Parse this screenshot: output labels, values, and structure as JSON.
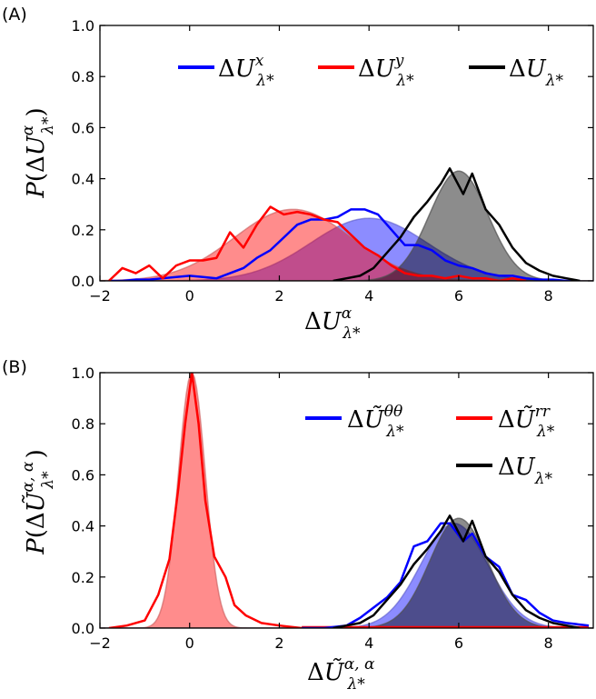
{
  "chart_data": [
    {
      "panel_label": "(A)",
      "type": "line",
      "xlim": [
        -2,
        9
      ],
      "ylim": [
        0,
        1.0
      ],
      "x_ticks": [
        -2,
        0,
        2,
        4,
        6,
        8
      ],
      "y_ticks": [
        0.0,
        0.2,
        0.4,
        0.6,
        0.8,
        1.0
      ],
      "x_tick_labels": [
        "−2",
        "0",
        "2",
        "4",
        "6",
        "8"
      ],
      "y_tick_labels": [
        "0.0",
        "0.2",
        "0.4",
        "0.6",
        "0.8",
        "1.0"
      ],
      "legend_placement": "top-right",
      "series": [
        {
          "name": "ΔU^x_λ*",
          "color": "#0000ff",
          "x": [
            -1.8,
            -1.5,
            -1.2,
            -0.9,
            -0.6,
            -0.3,
            0.0,
            0.3,
            0.6,
            0.9,
            1.2,
            1.5,
            1.8,
            2.1,
            2.4,
            2.7,
            3.0,
            3.3,
            3.6,
            3.9,
            4.2,
            4.5,
            4.8,
            5.1,
            5.4,
            5.7,
            6.0,
            6.3,
            6.6,
            6.9,
            7.2,
            7.5,
            7.8,
            8.1,
            8.4,
            8.7
          ],
          "y": [
            0.0,
            0.0,
            0.005,
            0.005,
            0.01,
            0.015,
            0.02,
            0.015,
            0.01,
            0.03,
            0.05,
            0.09,
            0.12,
            0.17,
            0.22,
            0.24,
            0.24,
            0.25,
            0.28,
            0.28,
            0.26,
            0.2,
            0.14,
            0.14,
            0.12,
            0.08,
            0.06,
            0.05,
            0.03,
            0.02,
            0.02,
            0.01,
            0.005,
            0.005,
            0.0,
            0.0
          ]
        },
        {
          "name": "ΔU^y_λ*",
          "color": "#ff0000",
          "x": [
            -1.8,
            -1.5,
            -1.2,
            -0.9,
            -0.6,
            -0.3,
            0.0,
            0.3,
            0.6,
            0.9,
            1.2,
            1.5,
            1.8,
            2.1,
            2.4,
            2.7,
            3.0,
            3.3,
            3.6,
            3.9,
            4.2,
            4.5,
            4.8,
            5.1,
            5.4,
            5.7,
            6.0,
            6.3,
            6.6,
            6.9,
            7.2,
            7.5
          ],
          "y": [
            0.0,
            0.05,
            0.03,
            0.06,
            0.01,
            0.06,
            0.08,
            0.08,
            0.09,
            0.19,
            0.13,
            0.22,
            0.29,
            0.26,
            0.27,
            0.26,
            0.24,
            0.23,
            0.18,
            0.13,
            0.1,
            0.06,
            0.03,
            0.02,
            0.02,
            0.01,
            0.02,
            0.01,
            0.01,
            0.0,
            0.01,
            0.0
          ]
        },
        {
          "name": "ΔU_λ*",
          "color": "#000000",
          "x": [
            3.2,
            3.5,
            3.8,
            4.1,
            4.4,
            4.7,
            5.0,
            5.3,
            5.6,
            5.8,
            6.1,
            6.3,
            6.6,
            6.9,
            7.2,
            7.5,
            7.8,
            8.1,
            8.4,
            8.7
          ],
          "y": [
            0.0,
            0.01,
            0.02,
            0.05,
            0.11,
            0.17,
            0.25,
            0.31,
            0.38,
            0.44,
            0.34,
            0.42,
            0.28,
            0.22,
            0.13,
            0.07,
            0.04,
            0.02,
            0.01,
            0.0
          ]
        }
      ],
      "fits": [
        {
          "color": "#0000ff",
          "mean": 4.0,
          "sigma": 1.3,
          "peak": 0.245
        },
        {
          "color": "#ff0000",
          "mean": 2.3,
          "sigma": 1.3,
          "peak": 0.28
        },
        {
          "color": "#000000",
          "mean": 6.0,
          "sigma": 0.65,
          "peak": 0.43
        }
      ]
    },
    {
      "panel_label": "(B)",
      "type": "line",
      "xlim": [
        -2,
        9
      ],
      "ylim": [
        0,
        1.0
      ],
      "x_ticks": [
        -2,
        0,
        2,
        4,
        6,
        8
      ],
      "y_ticks": [
        0.0,
        0.2,
        0.4,
        0.6,
        0.8,
        1.0
      ],
      "x_tick_labels": [
        "−2",
        "0",
        "2",
        "4",
        "6",
        "8"
      ],
      "y_tick_labels": [
        "0.0",
        "0.2",
        "0.4",
        "0.6",
        "0.8",
        "1.0"
      ],
      "legend_placement": "top-right",
      "series": [
        {
          "name": "ΔŨ^θθ_λ*",
          "color": "#0000ff",
          "x": [
            2.5,
            3.0,
            3.5,
            3.8,
            4.1,
            4.4,
            4.7,
            5.0,
            5.3,
            5.6,
            5.8,
            6.1,
            6.3,
            6.6,
            6.9,
            7.2,
            7.5,
            7.8,
            8.1,
            8.4,
            8.9
          ],
          "y": [
            0.0,
            0.0,
            0.01,
            0.04,
            0.08,
            0.12,
            0.18,
            0.32,
            0.34,
            0.41,
            0.41,
            0.34,
            0.37,
            0.28,
            0.24,
            0.13,
            0.11,
            0.06,
            0.03,
            0.02,
            0.01
          ]
        },
        {
          "name": "ΔŨ^rr_λ*",
          "color": "#ff0000",
          "x": [
            -1.8,
            -1.4,
            -1.0,
            -0.7,
            -0.45,
            -0.25,
            -0.1,
            0.05,
            0.2,
            0.35,
            0.55,
            0.8,
            1.0,
            1.25,
            1.6,
            2.0,
            2.5
          ],
          "y": [
            0.0,
            0.01,
            0.03,
            0.13,
            0.27,
            0.55,
            0.8,
            1.0,
            0.8,
            0.5,
            0.28,
            0.2,
            0.09,
            0.05,
            0.02,
            0.01,
            0.0
          ]
        },
        {
          "name": "ΔU_λ*",
          "color": "#000000",
          "x": [
            3.2,
            3.5,
            3.8,
            4.1,
            4.4,
            4.7,
            5.0,
            5.3,
            5.6,
            5.8,
            6.1,
            6.3,
            6.6,
            6.9,
            7.2,
            7.5,
            7.8,
            8.1,
            8.4,
            8.7
          ],
          "y": [
            0.0,
            0.01,
            0.02,
            0.05,
            0.11,
            0.17,
            0.25,
            0.31,
            0.38,
            0.44,
            0.34,
            0.42,
            0.28,
            0.22,
            0.13,
            0.07,
            0.04,
            0.02,
            0.01,
            0.0
          ]
        }
      ],
      "fits": [
        {
          "color": "#0000ff",
          "mean": 5.9,
          "sigma": 0.75,
          "peak": 0.41
        },
        {
          "color": "#ff0000",
          "mean": 0.05,
          "sigma": 0.3,
          "peak": 1.0
        },
        {
          "color": "#000000",
          "mean": 6.0,
          "sigma": 0.65,
          "peak": 0.43
        }
      ],
      "red_baseline": {
        "x": [
          2.5,
          8.9
        ],
        "y": 0.0
      }
    }
  ]
}
